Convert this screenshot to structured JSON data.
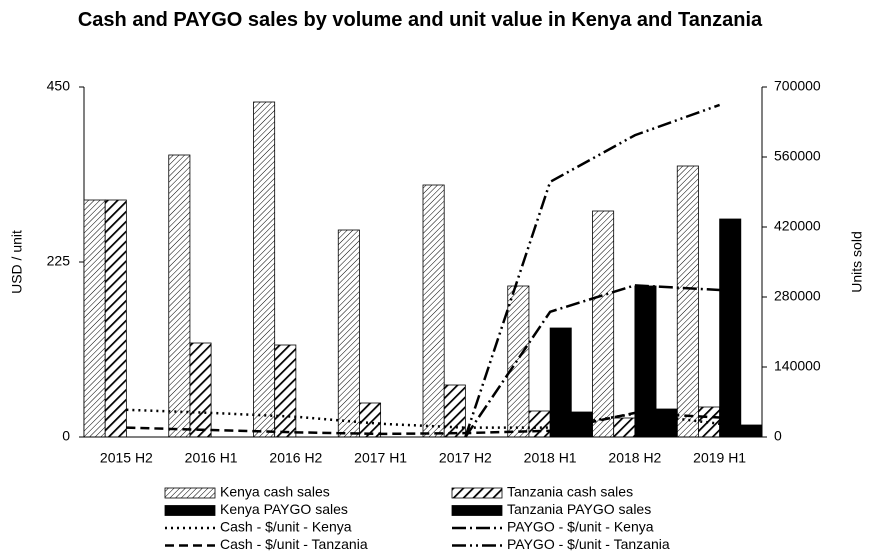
{
  "chart_data": {
    "type": "bar",
    "title": "Cash and PAYGO sales by volume and unit value in Kenya and Tanzania",
    "ylabel": "USD / unit",
    "y2label": "Units sold",
    "categories": [
      "2015 H2",
      "2016 H1",
      "2016 H2",
      "2017 H1",
      "2017 H2",
      "2018 H1",
      "2018 H2",
      "2019 H1"
    ],
    "ylim": [
      0,
      450
    ],
    "yticks": [
      0,
      225,
      450
    ],
    "y2lim": [
      0,
      700000
    ],
    "y2ticks": [
      0,
      140000,
      280000,
      420000,
      560000,
      700000
    ],
    "series": [
      {
        "name": "Kenya cash sales",
        "type": "bar",
        "axis": "y2",
        "color": "#000000",
        "pattern": "fine-hatch",
        "values": [
          474000,
          564000,
          670000,
          414000,
          504000,
          302000,
          452000,
          542000
        ]
      },
      {
        "name": "Tanzania cash sales",
        "type": "bar",
        "axis": "y2",
        "color": "#000000",
        "pattern": "bold-hatch",
        "values": [
          474000,
          188000,
          184000,
          68000,
          104000,
          52000,
          38000,
          60000
        ]
      },
      {
        "name": "Kenya PAYGO sales",
        "type": "bar",
        "axis": "y2",
        "color": "#000000",
        "pattern": "solid",
        "values": [
          0,
          0,
          0,
          0,
          0,
          218000,
          302000,
          436000
        ]
      },
      {
        "name": "Tanzania PAYGO sales",
        "type": "bar",
        "axis": "y2",
        "color": "#000000",
        "pattern": "solid",
        "values": [
          0,
          0,
          0,
          0,
          0,
          50000,
          56000,
          24000
        ]
      },
      {
        "name": "Cash - $/unit - Kenya",
        "type": "line",
        "color": "#000000",
        "dash": "dot",
        "values": [
          35,
          31,
          26,
          17,
          12,
          12,
          30,
          17
        ]
      },
      {
        "name": "PAYGO - $/unit - Kenya",
        "type": "line",
        "color": "#000000",
        "dash": "dash-dot",
        "values": [
          null,
          null,
          null,
          null,
          0,
          161,
          195,
          189
        ]
      },
      {
        "name": "Cash - $/unit - Tanzania",
        "type": "line",
        "color": "#000000",
        "dash": "dash",
        "values": [
          12,
          9,
          6,
          4,
          5,
          8,
          31,
          25
        ]
      },
      {
        "name": "PAYGO - $/unit - Tanzania",
        "type": "line",
        "color": "#000000",
        "dash": "dash-dot-dot",
        "values": [
          null,
          null,
          null,
          null,
          0,
          328,
          388,
          427
        ]
      }
    ]
  }
}
